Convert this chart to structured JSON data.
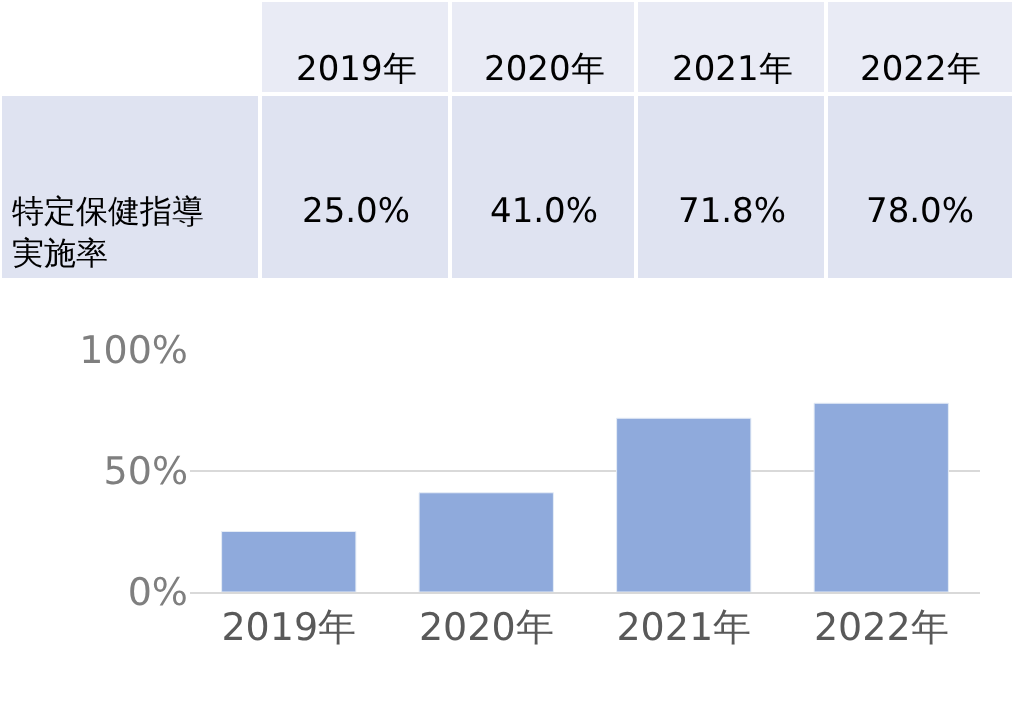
{
  "chart_data": {
    "type": "bar",
    "categories": [
      "2019年",
      "2020年",
      "2021年",
      "2022年"
    ],
    "values": [
      25,
      41,
      71.8,
      78
    ],
    "value_labels": [
      "25.0%",
      "41.0%",
      "71.8%",
      "78.0%"
    ],
    "color": "#8faadc",
    "ylim": [
      0,
      100
    ],
    "yticks": [
      {
        "value": 0,
        "label": "0%"
      },
      {
        "value": 50,
        "label": "50%"
      },
      {
        "value": 100,
        "label": "100%"
      }
    ],
    "grid": "y",
    "legend": false,
    "annotations": [
      "特定保健指導実施率"
    ]
  }
}
